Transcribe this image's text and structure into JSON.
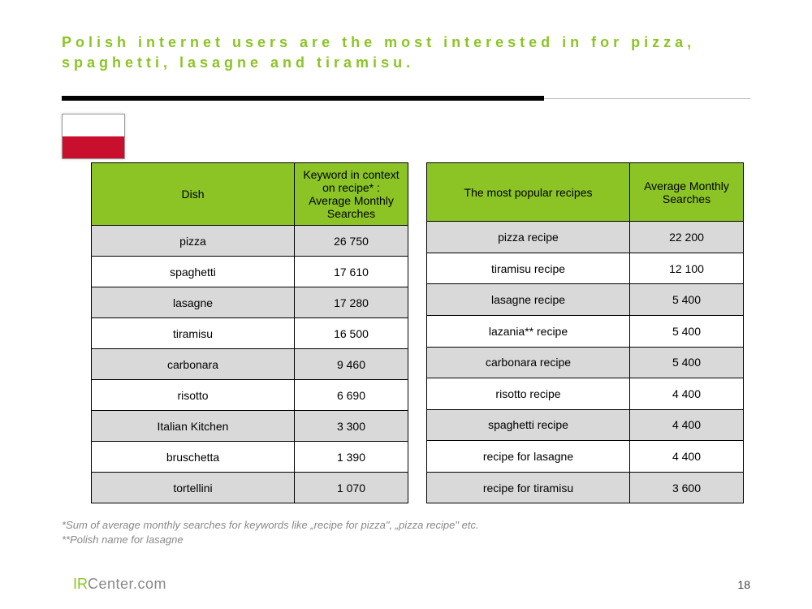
{
  "title": "Polish internet users are the most interested in for pizza, spaghetti, lasagne and tiramisu.",
  "colors": {
    "accent": "#8bc424",
    "row_alt": "#d9d9d9",
    "flag_red": "#c8102e"
  },
  "flag": {
    "country": "Poland"
  },
  "table1": {
    "columns": [
      "Dish",
      "Keyword in context on recipe* : Average Monthly Searches"
    ],
    "rows": [
      [
        "pizza",
        "26 750"
      ],
      [
        "spaghetti",
        "17 610"
      ],
      [
        "lasagne",
        "17 280"
      ],
      [
        "tiramisu",
        "16 500"
      ],
      [
        "carbonara",
        "9 460"
      ],
      [
        "risotto",
        "6 690"
      ],
      [
        "Italian Kitchen",
        "3 300"
      ],
      [
        "bruschetta",
        "1 390"
      ],
      [
        "tortellini",
        "1 070"
      ]
    ]
  },
  "table2": {
    "columns": [
      "The most popular recipes",
      "Average Monthly Searches"
    ],
    "rows": [
      [
        "pizza recipe",
        "22 200"
      ],
      [
        "tiramisu recipe",
        "12 100"
      ],
      [
        "lasagne recipe",
        "5 400"
      ],
      [
        "lazania** recipe",
        "5 400"
      ],
      [
        "carbonara recipe",
        "5 400"
      ],
      [
        "risotto recipe",
        "4 400"
      ],
      [
        "spaghetti recipe",
        "4 400"
      ],
      [
        "recipe for lasagne",
        "4 400"
      ],
      [
        "recipe for tiramisu",
        "3 600"
      ]
    ]
  },
  "footnotes": {
    "line1": "*Sum of average monthly searches for keywords like „recipe for pizza\", „pizza recipe\" etc.",
    "line2": "**Polish name for lasagne"
  },
  "logo": {
    "part1": "IR",
    "part2": "Center.com"
  },
  "page_number": "18"
}
